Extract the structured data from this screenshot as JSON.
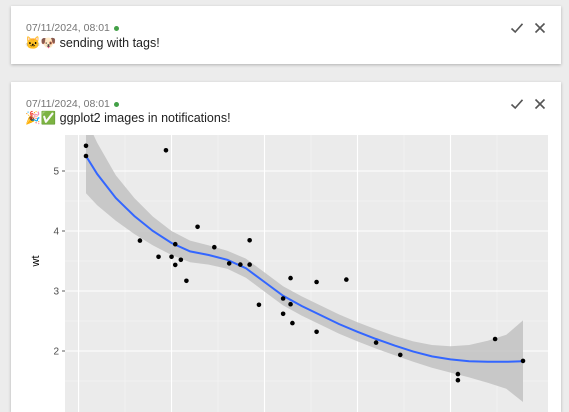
{
  "notifications": [
    {
      "timestamp": "07/11/2024, 08:01",
      "status_color": "#43a047",
      "emoji": "🐱🐶",
      "message": "sending with tags!",
      "actions": [
        "check-icon",
        "close-icon"
      ]
    },
    {
      "timestamp": "07/11/2024, 08:01",
      "status_color": "#43a047",
      "emoji": "🎉✅",
      "message": "ggplot2 images in notifications!",
      "actions": [
        "check-icon",
        "close-icon"
      ]
    }
  ],
  "chart_data": {
    "type": "scatter",
    "ylabel": "wt",
    "xlabel": "",
    "y_ticks": [
      "2",
      "3",
      "4",
      "5"
    ],
    "ylim": [
      1.5,
      5.5
    ],
    "xlim": [
      10,
      34
    ],
    "grid": true,
    "points": [
      [
        10.4,
        5.42
      ],
      [
        10.4,
        5.25
      ],
      [
        14.7,
        5.345
      ],
      [
        13.3,
        3.84
      ],
      [
        14.3,
        3.57
      ],
      [
        15.0,
        3.57
      ],
      [
        15.2,
        3.78
      ],
      [
        15.2,
        3.435
      ],
      [
        15.5,
        3.52
      ],
      [
        15.8,
        3.17
      ],
      [
        16.4,
        4.07
      ],
      [
        17.3,
        3.73
      ],
      [
        18.1,
        3.46
      ],
      [
        18.7,
        3.44
      ],
      [
        19.2,
        3.44
      ],
      [
        19.2,
        3.845
      ],
      [
        19.7,
        2.77
      ],
      [
        21.0,
        2.62
      ],
      [
        21.0,
        2.875
      ],
      [
        21.4,
        3.215
      ],
      [
        21.4,
        2.78
      ],
      [
        21.5,
        2.465
      ],
      [
        22.8,
        3.15
      ],
      [
        22.8,
        2.32
      ],
      [
        24.4,
        3.19
      ],
      [
        26.0,
        2.14
      ],
      [
        27.3,
        1.935
      ],
      [
        30.4,
        1.615
      ],
      [
        30.4,
        1.513
      ],
      [
        32.4,
        2.2
      ],
      [
        33.9,
        1.835
      ]
    ],
    "smooth": [
      [
        10.4,
        5.25
      ],
      [
        11,
        4.95
      ],
      [
        12,
        4.55
      ],
      [
        13,
        4.25
      ],
      [
        14,
        4.0
      ],
      [
        15,
        3.8
      ],
      [
        16,
        3.66
      ],
      [
        17,
        3.6
      ],
      [
        18,
        3.52
      ],
      [
        19,
        3.38
      ],
      [
        20,
        3.15
      ],
      [
        21,
        2.92
      ],
      [
        22,
        2.75
      ],
      [
        23,
        2.6
      ],
      [
        24,
        2.45
      ],
      [
        25,
        2.32
      ],
      [
        26,
        2.2
      ],
      [
        27,
        2.09
      ],
      [
        28,
        1.99
      ],
      [
        29,
        1.91
      ],
      [
        30,
        1.86
      ],
      [
        31,
        1.83
      ],
      [
        32,
        1.82
      ],
      [
        33,
        1.82
      ],
      [
        33.9,
        1.83
      ]
    ],
    "ribbon_width": [
      0.62,
      0.52,
      0.38,
      0.3,
      0.24,
      0.2,
      0.18,
      0.16,
      0.15,
      0.16,
      0.16,
      0.16,
      0.16,
      0.16,
      0.16,
      0.16,
      0.16,
      0.16,
      0.17,
      0.19,
      0.22,
      0.27,
      0.35,
      0.45,
      0.68
    ],
    "colors": {
      "panel": "#ebebeb",
      "grid": "#ffffff",
      "line": "#3366ff",
      "ribbon": "#c2c2c2",
      "point": "#000000"
    }
  }
}
